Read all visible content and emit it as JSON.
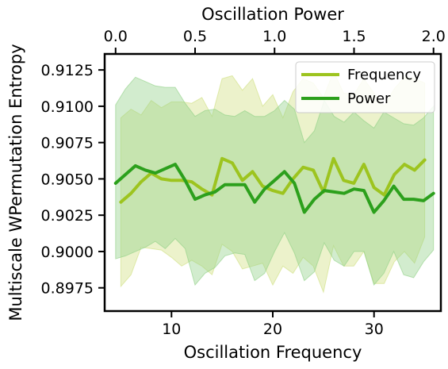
{
  "chart_data": {
    "type": "line",
    "xlabel": "Oscillation Frequency",
    "x2label": "Oscillation Power",
    "ylabel": "Multiscale WPermutation Entropy",
    "xlim": [
      3.4,
      36.6
    ],
    "x2lim": [
      -0.06875,
      2.04625
    ],
    "ylim": [
      0.8959,
      0.9136
    ],
    "xticks": [
      10,
      20,
      30
    ],
    "x2ticks": [
      0.0,
      0.5,
      1.0,
      1.5,
      2.0
    ],
    "x2tick_labels": [
      "0.0",
      "0.5",
      "1.0",
      "1.5",
      "2.0"
    ],
    "yticks": [
      0.8975,
      0.9,
      0.9025,
      0.905,
      0.9075,
      0.91,
      0.9125
    ],
    "ytick_labels": [
      "0.8975",
      "0.9000",
      "0.9025",
      "0.9050",
      "0.9075",
      "0.9100",
      "0.9125"
    ],
    "legend_position": "top-right",
    "series": [
      {
        "name": "Frequency",
        "axis": "bottom",
        "color": "#9dc41f",
        "band_color": "#cfdf7e",
        "x": [
          5,
          6,
          7,
          8,
          9,
          10,
          11,
          12,
          13,
          14,
          15,
          16,
          17,
          18,
          19,
          20,
          21,
          22,
          23,
          24,
          25,
          26,
          27,
          28,
          29,
          30,
          31,
          32,
          33,
          34,
          35
        ],
        "y": [
          0.9034,
          0.904,
          0.9048,
          0.9054,
          0.905,
          0.9049,
          0.9049,
          0.9048,
          0.9043,
          0.9039,
          0.9064,
          0.9061,
          0.9049,
          0.9055,
          0.9045,
          0.9042,
          0.904,
          0.905,
          0.9058,
          0.9056,
          0.9041,
          0.9064,
          0.9049,
          0.9047,
          0.906,
          0.9044,
          0.9039,
          0.9053,
          0.906,
          0.9056,
          0.9063
        ],
        "lower": [
          0.8976,
          0.8984,
          0.9003,
          0.9002,
          0.9001,
          0.8996,
          0.899,
          0.8994,
          0.899,
          0.8984,
          0.9005,
          0.9,
          0.8988,
          0.899,
          0.8992,
          0.8977,
          0.899,
          0.8985,
          0.8996,
          0.899,
          0.8972,
          0.9004,
          0.899,
          0.899,
          0.9,
          0.8978,
          0.8978,
          0.8993,
          0.9,
          0.8992,
          0.901
        ],
        "upper": [
          0.9092,
          0.9098,
          0.9094,
          0.9104,
          0.9099,
          0.9103,
          0.9103,
          0.9102,
          0.9106,
          0.9093,
          0.9119,
          0.9121,
          0.9111,
          0.9119,
          0.91,
          0.9108,
          0.9092,
          0.911,
          0.9119,
          0.9116,
          0.9106,
          0.9124,
          0.9109,
          0.9108,
          0.9119,
          0.9109,
          0.91,
          0.9112,
          0.912,
          0.9119,
          0.9116
        ]
      },
      {
        "name": "Power",
        "axis": "top",
        "color": "#2ca01c",
        "band_color": "#8fd085",
        "x": [
          0.0,
          0.0625,
          0.125,
          0.1875,
          0.25,
          0.3125,
          0.375,
          0.4375,
          0.5,
          0.5625,
          0.625,
          0.6875,
          0.75,
          0.8125,
          0.875,
          0.9375,
          1.0,
          1.0625,
          1.125,
          1.1875,
          1.25,
          1.3125,
          1.375,
          1.4375,
          1.5,
          1.5625,
          1.625,
          1.6875,
          1.75,
          1.8125,
          1.875,
          1.9375,
          2.0
        ],
        "y": [
          0.9047,
          0.9053,
          0.9059,
          0.9056,
          0.9054,
          0.9057,
          0.906,
          0.9049,
          0.9036,
          0.9039,
          0.9041,
          0.9046,
          0.9046,
          0.9046,
          0.9034,
          0.9043,
          0.9049,
          0.9055,
          0.9047,
          0.9027,
          0.9036,
          0.9042,
          0.9041,
          0.904,
          0.9043,
          0.9042,
          0.9027,
          0.9035,
          0.9045,
          0.9036,
          0.9036,
          0.9035,
          0.904
        ],
        "lower": [
          0.8995,
          0.8997,
          0.9,
          0.9003,
          0.9007,
          0.9002,
          0.9009,
          0.9002,
          0.8977,
          0.8985,
          0.8989,
          0.8997,
          0.8999,
          0.8998,
          0.898,
          0.8985,
          0.9,
          0.9013,
          0.8999,
          0.898,
          0.8986,
          0.9006,
          0.8994,
          0.899,
          0.9,
          0.9,
          0.8977,
          0.8985,
          0.9,
          0.8984,
          0.8982,
          0.8993,
          0.9001
        ],
        "upper": [
          0.9101,
          0.9112,
          0.912,
          0.9117,
          0.9114,
          0.9113,
          0.9113,
          0.9102,
          0.9093,
          0.9097,
          0.9098,
          0.9094,
          0.9093,
          0.9097,
          0.9093,
          0.9093,
          0.9097,
          0.9104,
          0.9098,
          0.9075,
          0.9083,
          0.9104,
          0.9093,
          0.9089,
          0.9096,
          0.909,
          0.9085,
          0.9096,
          0.9092,
          0.9088,
          0.9087,
          0.9092,
          0.91
        ]
      }
    ]
  }
}
